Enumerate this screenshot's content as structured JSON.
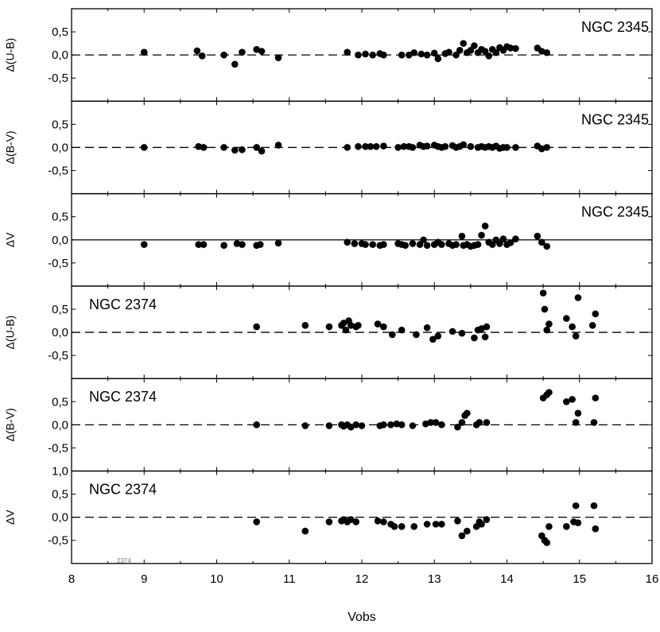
{
  "chart_data": {
    "type": "scatter",
    "xlabel": "Vobs",
    "xlim": [
      8,
      16
    ],
    "xticks": [
      "8",
      "9",
      "10",
      "11",
      "12",
      "13",
      "14",
      "15",
      "16"
    ],
    "watermark": "2374",
    "colors": {
      "points": "#000000",
      "axes": "#000000",
      "background": "#ffffff"
    },
    "panels": [
      {
        "cluster": "NGC 2345",
        "label_pos": "top-right",
        "ylabel": "Δ(U-B)",
        "ylim": [
          -1.0,
          1.0
        ],
        "ref_line": "dashed",
        "yticks": [
          {
            "v": 0.5,
            "t": "0,5"
          },
          {
            "v": 0.0,
            "t": "0,0"
          },
          {
            "v": -0.5,
            "t": "-0,5"
          }
        ],
        "points": [
          [
            9.0,
            0.06
          ],
          [
            9.73,
            0.09
          ],
          [
            9.8,
            -0.02
          ],
          [
            10.1,
            0.0
          ],
          [
            10.25,
            -0.2
          ],
          [
            10.35,
            0.06
          ],
          [
            10.55,
            0.12
          ],
          [
            10.62,
            0.08
          ],
          [
            10.85,
            -0.06
          ],
          [
            11.8,
            0.06
          ],
          [
            11.95,
            0.0
          ],
          [
            12.05,
            0.02
          ],
          [
            12.15,
            0.0
          ],
          [
            12.25,
            0.03
          ],
          [
            12.3,
            0.0
          ],
          [
            12.55,
            0.0
          ],
          [
            12.65,
            0.0
          ],
          [
            12.72,
            0.05
          ],
          [
            12.82,
            0.02
          ],
          [
            12.9,
            0.0
          ],
          [
            13.0,
            0.04
          ],
          [
            13.05,
            -0.08
          ],
          [
            13.15,
            0.03
          ],
          [
            13.2,
            0.06
          ],
          [
            13.3,
            0.0
          ],
          [
            13.35,
            0.1
          ],
          [
            13.4,
            0.25
          ],
          [
            13.45,
            0.05
          ],
          [
            13.5,
            0.1
          ],
          [
            13.55,
            0.2
          ],
          [
            13.6,
            0.05
          ],
          [
            13.65,
            0.12
          ],
          [
            13.7,
            0.08
          ],
          [
            13.75,
            -0.02
          ],
          [
            13.8,
            0.12
          ],
          [
            13.85,
            0.05
          ],
          [
            13.9,
            0.16
          ],
          [
            13.95,
            0.1
          ],
          [
            14.0,
            0.18
          ],
          [
            14.05,
            0.15
          ],
          [
            14.12,
            0.14
          ],
          [
            14.42,
            0.15
          ],
          [
            14.48,
            0.08
          ],
          [
            14.55,
            0.05
          ]
        ]
      },
      {
        "cluster": "NGC 2345",
        "label_pos": "top-right",
        "ylabel": "Δ(B-V)",
        "ylim": [
          -1.0,
          1.0
        ],
        "ref_line": "dashed",
        "yticks": [
          {
            "v": 0.5,
            "t": "0,5"
          },
          {
            "v": 0.0,
            "t": "0,0"
          },
          {
            "v": -0.5,
            "t": "-0,5"
          }
        ],
        "points": [
          [
            9.0,
            0.0
          ],
          [
            9.75,
            0.02
          ],
          [
            9.82,
            0.0
          ],
          [
            10.1,
            0.0
          ],
          [
            10.25,
            -0.06
          ],
          [
            10.35,
            -0.05
          ],
          [
            10.55,
            0.0
          ],
          [
            10.62,
            -0.08
          ],
          [
            10.85,
            0.05
          ],
          [
            11.8,
            0.0
          ],
          [
            11.95,
            0.02
          ],
          [
            12.05,
            0.02
          ],
          [
            12.12,
            0.02
          ],
          [
            12.2,
            0.02
          ],
          [
            12.3,
            0.03
          ],
          [
            12.5,
            0.0
          ],
          [
            12.58,
            0.02
          ],
          [
            12.65,
            0.02
          ],
          [
            12.7,
            0.0
          ],
          [
            12.8,
            0.05
          ],
          [
            12.85,
            0.02
          ],
          [
            12.9,
            0.03
          ],
          [
            13.0,
            0.05
          ],
          [
            13.05,
            0.02
          ],
          [
            13.1,
            0.0
          ],
          [
            13.15,
            0.02
          ],
          [
            13.25,
            0.04
          ],
          [
            13.3,
            0.0
          ],
          [
            13.35,
            0.02
          ],
          [
            13.4,
            0.06
          ],
          [
            13.5,
            0.02
          ],
          [
            13.6,
            0.0
          ],
          [
            13.65,
            0.02
          ],
          [
            13.7,
            0.0
          ],
          [
            13.75,
            0.02
          ],
          [
            13.8,
            0.0
          ],
          [
            13.85,
            0.03
          ],
          [
            13.9,
            -0.02
          ],
          [
            13.95,
            0.0
          ],
          [
            14.0,
            0.0
          ],
          [
            14.12,
            0.0
          ],
          [
            14.42,
            0.03
          ],
          [
            14.48,
            -0.03
          ],
          [
            14.55,
            0.0
          ]
        ]
      },
      {
        "cluster": "NGC 2345",
        "label_pos": "top-right",
        "ylabel": "ΔV",
        "ylim": [
          -1.0,
          1.0
        ],
        "ref_line": "solid",
        "yticks": [
          {
            "v": 0.5,
            "t": "0,5"
          },
          {
            "v": 0.0,
            "t": "0,0"
          },
          {
            "v": -0.5,
            "t": "-0,5"
          }
        ],
        "points": [
          [
            9.0,
            -0.1
          ],
          [
            9.75,
            -0.1
          ],
          [
            9.82,
            -0.1
          ],
          [
            10.1,
            -0.12
          ],
          [
            10.28,
            -0.08
          ],
          [
            10.35,
            -0.1
          ],
          [
            10.55,
            -0.12
          ],
          [
            10.6,
            -0.1
          ],
          [
            10.85,
            -0.07
          ],
          [
            11.8,
            -0.05
          ],
          [
            11.9,
            -0.08
          ],
          [
            12.0,
            -0.08
          ],
          [
            12.05,
            -0.1
          ],
          [
            12.15,
            -0.1
          ],
          [
            12.25,
            -0.12
          ],
          [
            12.3,
            -0.1
          ],
          [
            12.5,
            -0.08
          ],
          [
            12.55,
            -0.1
          ],
          [
            12.6,
            -0.12
          ],
          [
            12.7,
            -0.08
          ],
          [
            12.8,
            -0.1
          ],
          [
            12.85,
            0.0
          ],
          [
            12.9,
            -0.12
          ],
          [
            13.0,
            -0.1
          ],
          [
            13.05,
            -0.05
          ],
          [
            13.1,
            -0.1
          ],
          [
            13.2,
            -0.08
          ],
          [
            13.25,
            -0.12
          ],
          [
            13.3,
            -0.1
          ],
          [
            13.38,
            0.08
          ],
          [
            13.4,
            -0.12
          ],
          [
            13.45,
            -0.1
          ],
          [
            13.5,
            -0.14
          ],
          [
            13.55,
            -0.12
          ],
          [
            13.6,
            -0.1
          ],
          [
            13.65,
            0.1
          ],
          [
            13.7,
            0.3
          ],
          [
            13.75,
            -0.05
          ],
          [
            13.8,
            -0.1
          ],
          [
            13.85,
            0.0
          ],
          [
            13.9,
            -0.08
          ],
          [
            13.95,
            0.02
          ],
          [
            14.0,
            -0.1
          ],
          [
            14.05,
            -0.06
          ],
          [
            14.12,
            0.02
          ],
          [
            14.42,
            0.08
          ],
          [
            14.48,
            -0.05
          ],
          [
            14.55,
            -0.14
          ]
        ]
      },
      {
        "cluster": "NGC 2374",
        "label_pos": "top-left",
        "ylabel": "Δ(U-B)",
        "ylim": [
          -1.0,
          1.0
        ],
        "ref_line": "dashed",
        "yticks": [
          {
            "v": 0.5,
            "t": "0,5"
          },
          {
            "v": 0.0,
            "t": "0,0"
          },
          {
            "v": -0.5,
            "t": "-0,5"
          }
        ],
        "points": [
          [
            10.55,
            0.12
          ],
          [
            11.22,
            0.15
          ],
          [
            11.55,
            0.12
          ],
          [
            11.72,
            0.15
          ],
          [
            11.75,
            0.2
          ],
          [
            11.78,
            0.05
          ],
          [
            11.82,
            0.25
          ],
          [
            11.85,
            0.15
          ],
          [
            11.92,
            0.12
          ],
          [
            11.95,
            0.15
          ],
          [
            12.22,
            0.18
          ],
          [
            12.3,
            0.12
          ],
          [
            12.42,
            -0.05
          ],
          [
            12.55,
            0.05
          ],
          [
            12.75,
            -0.05
          ],
          [
            12.9,
            0.1
          ],
          [
            12.98,
            -0.15
          ],
          [
            13.05,
            -0.08
          ],
          [
            13.25,
            0.02
          ],
          [
            13.38,
            -0.02
          ],
          [
            13.55,
            -0.12
          ],
          [
            13.6,
            0.05
          ],
          [
            13.65,
            0.08
          ],
          [
            13.7,
            -0.1
          ],
          [
            13.72,
            0.12
          ],
          [
            14.5,
            0.85
          ],
          [
            14.52,
            0.5
          ],
          [
            14.55,
            0.05
          ],
          [
            14.58,
            0.18
          ],
          [
            14.82,
            0.3
          ],
          [
            14.9,
            0.12
          ],
          [
            14.95,
            -0.08
          ],
          [
            14.98,
            0.75
          ],
          [
            15.18,
            0.15
          ],
          [
            15.22,
            0.4
          ]
        ]
      },
      {
        "cluster": "NGC 2374",
        "label_pos": "top-left",
        "ylabel": "Δ(B-V)",
        "ylim": [
          -1.0,
          1.0
        ],
        "ref_line": "dashed",
        "yticks": [
          {
            "v": 0.5,
            "t": "0,5"
          },
          {
            "v": 0.0,
            "t": "0,0"
          },
          {
            "v": -0.5,
            "t": "-0,5"
          }
        ],
        "points": [
          [
            10.55,
            0.0
          ],
          [
            11.22,
            -0.02
          ],
          [
            11.55,
            -0.02
          ],
          [
            11.72,
            0.0
          ],
          [
            11.75,
            -0.03
          ],
          [
            11.8,
            0.0
          ],
          [
            11.85,
            -0.05
          ],
          [
            11.92,
            0.0
          ],
          [
            12.0,
            -0.02
          ],
          [
            12.25,
            -0.02
          ],
          [
            12.3,
            0.0
          ],
          [
            12.4,
            0.0
          ],
          [
            12.48,
            0.02
          ],
          [
            12.55,
            0.0
          ],
          [
            12.7,
            -0.02
          ],
          [
            12.88,
            0.02
          ],
          [
            12.95,
            0.05
          ],
          [
            13.02,
            0.05
          ],
          [
            13.1,
            0.0
          ],
          [
            13.32,
            -0.05
          ],
          [
            13.38,
            0.05
          ],
          [
            13.42,
            0.2
          ],
          [
            13.45,
            0.25
          ],
          [
            13.58,
            0.0
          ],
          [
            13.62,
            0.05
          ],
          [
            13.72,
            0.05
          ],
          [
            14.5,
            0.58
          ],
          [
            14.55,
            0.65
          ],
          [
            14.58,
            0.7
          ],
          [
            14.82,
            0.5
          ],
          [
            14.9,
            0.55
          ],
          [
            14.95,
            0.05
          ],
          [
            14.98,
            0.25
          ],
          [
            15.2,
            0.05
          ],
          [
            15.22,
            0.58
          ]
        ]
      },
      {
        "cluster": "NGC 2374",
        "label_pos": "top-left",
        "ylabel": "ΔV",
        "ylim": [
          -1.0,
          1.0
        ],
        "ref_line": "dashed",
        "yticks": [
          {
            "v": 1.0,
            "t": "1,0"
          },
          {
            "v": 0.5,
            "t": "0,5"
          },
          {
            "v": 0.0,
            "t": "0,0"
          },
          {
            "v": -0.5,
            "t": "-0,5"
          }
        ],
        "points": [
          [
            10.55,
            -0.1
          ],
          [
            11.22,
            -0.3
          ],
          [
            11.55,
            -0.1
          ],
          [
            11.72,
            -0.08
          ],
          [
            11.75,
            -0.05
          ],
          [
            11.8,
            -0.1
          ],
          [
            11.85,
            -0.05
          ],
          [
            11.92,
            -0.1
          ],
          [
            12.22,
            -0.08
          ],
          [
            12.3,
            -0.1
          ],
          [
            12.4,
            -0.15
          ],
          [
            12.45,
            -0.2
          ],
          [
            12.55,
            -0.2
          ],
          [
            12.72,
            -0.2
          ],
          [
            12.9,
            -0.15
          ],
          [
            13.02,
            -0.15
          ],
          [
            13.1,
            -0.15
          ],
          [
            13.32,
            -0.08
          ],
          [
            13.38,
            -0.4
          ],
          [
            13.45,
            -0.3
          ],
          [
            13.58,
            -0.2
          ],
          [
            13.62,
            -0.1
          ],
          [
            13.65,
            -0.15
          ],
          [
            13.72,
            -0.05
          ],
          [
            14.48,
            -0.4
          ],
          [
            14.52,
            -0.5
          ],
          [
            14.55,
            -0.55
          ],
          [
            14.58,
            -0.2
          ],
          [
            14.82,
            -0.2
          ],
          [
            14.92,
            -0.1
          ],
          [
            14.95,
            0.25
          ],
          [
            14.98,
            -0.12
          ],
          [
            15.2,
            0.25
          ],
          [
            15.22,
            -0.25
          ]
        ]
      }
    ]
  }
}
